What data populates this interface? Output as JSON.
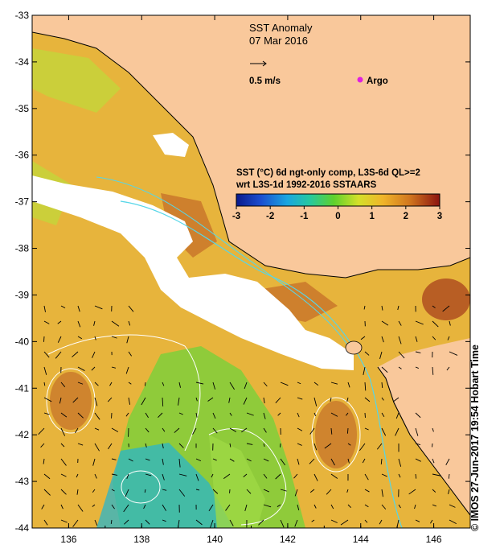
{
  "title": "SST Anomaly",
  "date": "07 Mar 2016",
  "vector_scale_label": "0.5 m/s",
  "argo_label": "Argo",
  "colorbar": {
    "line1": "SST (°C) 6d ngt-only comp, L3S-6d QL>=2",
    "line2": "wrt L3S-1d 1992-2016 SSTAARS",
    "ticks": [
      "-3",
      "-2",
      "-1",
      "0",
      "1",
      "2",
      "3"
    ],
    "min": -3,
    "max": 3
  },
  "x_axis": {
    "ticks": [
      "136",
      "138",
      "140",
      "142",
      "144",
      "146"
    ],
    "min": 135,
    "max": 147
  },
  "y_axis": {
    "ticks": [
      "-33",
      "-34",
      "-35",
      "-36",
      "-37",
      "-38",
      "-39",
      "-40",
      "-41",
      "-42",
      "-43",
      "-44"
    ],
    "min": -44,
    "max": -33
  },
  "credit": "© IMOS 27-Jun-2017 19:54 Hobart Time",
  "colors": {
    "land": "#f9c89b",
    "no_data": "#ffffff",
    "argo": "#e020e0"
  }
}
